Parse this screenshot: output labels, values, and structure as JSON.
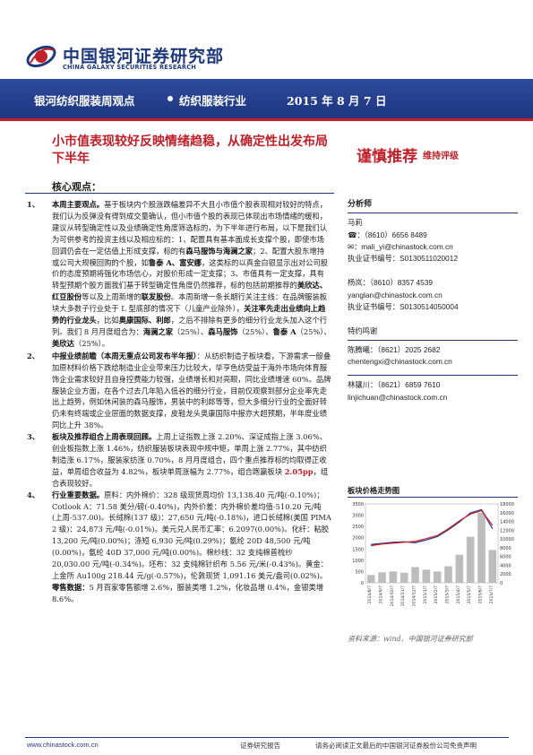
{
  "header": {
    "logo_cn": "中国银河证券研究部",
    "logo_en": "CHINA GALAXY SECURITIES RESEARCH",
    "banner_title": "银河纺织服装周观点",
    "banner_industry": "纺织服装行业",
    "banner_date": "2015 年 8 月 7 日"
  },
  "headline": "小市值表现较好反映情绪趋稳，从确定性出发布局下半年",
  "rating": {
    "label": "谨慎推荐",
    "sub": "维持评级"
  },
  "core_label": "核心观点：",
  "items": [
    {
      "num": "1、",
      "segments": [
        {
          "t": "本周主要观点。",
          "s": "b"
        },
        {
          "t": "基于板块内个股涨跌幅差异不大且小市值个股表现相对较好的特点，我们认为反弹没有得到成交量确认，但小市值个股的表现已体现出市场情绪的缓和，建议从转型确定性以及业绩确定性角度筛选标的，为下半年进行布局，以下是我们认为可供参考的投资主线以及相应标的：1、配置具有基本面成长支撑个股，即使市场回调仍会在一定估值上形成支撑，标的有"
        },
        {
          "t": "森马服饰与海澜之家",
          "s": "b"
        },
        {
          "t": "；2、配置大股东增持或公司大规模回购的个股，如"
        },
        {
          "t": "鲁泰 A、富安娜",
          "s": "b"
        },
        {
          "t": "，这类标的以真金白银显示出对公司股价的态度预期将强化市场信心，对股价形成一定支撑；3、市值具有一定支撑，具有转型预期个股方面我们基于转型确定性角度仍然推荐，标的包括前期推荐的"
        },
        {
          "t": "美欣达、红豆股份",
          "s": "b"
        },
        {
          "t": "等以及上周新增的"
        },
        {
          "t": "联发股份",
          "s": "b"
        },
        {
          "t": "。本周新增一条长期行关注主线：在品牌服装板块大多数子行业处于 L 型底部的情况下（儿童产业除外），"
        },
        {
          "t": "关注率先走出业绩向上趋势的行业龙头",
          "s": "b"
        },
        {
          "t": "，比如"
        },
        {
          "t": "奥康国际、利郎",
          "s": "b"
        },
        {
          "t": "，之后不排除有更多的细分行业龙头加入这个行列。我们 8 月月度组合为："
        },
        {
          "t": "海澜之家",
          "s": "b"
        },
        {
          "t": "（25%）、"
        },
        {
          "t": "森马服饰",
          "s": "b"
        },
        {
          "t": "（25%）、"
        },
        {
          "t": "鲁泰 A",
          "s": "b"
        },
        {
          "t": "（25%）、"
        },
        {
          "t": "美欣达",
          "s": "b"
        },
        {
          "t": "（25%）。"
        }
      ]
    },
    {
      "num": "2、",
      "segments": [
        {
          "t": "中报业绩前瞻（本周无重点公司发布半年报）",
          "s": "b"
        },
        {
          "t": "：从纺织制造子板块看，下游需求一般叠加原材料价格下跌给制造业企业带来压力比较大，毕亨色纺受益于海外市场向体育服饰企业需求较好且自身控费能力较强，业绩增长和对亮眼，同比业绩增速 60%。品牌服装企业方面，在各个过去几年陷入低谷的细分行业，目前仅观察到部分企业率先走出上趋势，例如休闲装的森马服饰，男装中的利郎等等，但大多细分行业的全面好转仍未有终端或企业层面的数据支撑，皮鞋龙头奥康国际中报亦大超预期，半年度业绩同比上升 38%。"
        }
      ]
    },
    {
      "num": "3、",
      "segments": [
        {
          "t": "板块及推荐组合上周表现回顾。",
          "s": "b"
        },
        {
          "t": "上周上证指数上涨 2.20%、深证成指上涨 3.06%、创业板指数上涨 1.46%，纺织服装板块表现中规中矩，单周上涨 2.77%，其中纺织制造涨 6.17%，服装家纺涨 0.70%，8 月月度组合，四个重点推荐标的均取得正收益，单周组合收益为 4.82%，板块单周涨幅为 2.77%，组合跑赢板块 "
        },
        {
          "t": "2.05pp",
          "s": "red"
        },
        {
          "t": "，组合表现较好。"
        }
      ]
    },
    {
      "num": "4、",
      "segments": [
        {
          "t": "行业重要数据。",
          "s": "b"
        },
        {
          "t": "原料：内外棉价：328 级现货周均价 13,138.40 元/吨(-0.10%)；Cotlook A：71.58 美分/磅(-0.40%)，内外价差：内外棉价差均值-510.20 元/吨(上周-537.00)。长绒棉(137 级)：27,650 元/吨(-0.18%)，进口长绒棉(美国 PIMA 2 级)：24,873 元/吨(-0.01%)。美元兑人民币汇率：6.2097(0.00%)。化纤：粘胶 13,200 元/吨(0.00%)；涤短 6,930 元/吨(0.29%)；氨纶 20D 48,500 元/吨(0.00%)，氨纶 40D 37,000 元/吨(0.00%)。棉纱线：32 支纯棉普梳纱 20,030.00 元/吨(-0.34%)。坯布：32 支纯棉针织布 5.56 元/米(-0.43%)。黄金：上金所 Au100g 218.44 元/g(-0.57%)，伦敦现货 1,091.16 美元/盎司(0.02%)。"
        },
        {
          "t": "零售数据：",
          "s": "b"
        },
        {
          "t": "5 月百家零售额增 2.6%，服装类增 1.2%，化妆品增 0.4%，金银类增 8.6%。"
        }
      ]
    }
  ],
  "sidebar": {
    "title": "分析师",
    "analysts": [
      {
        "name": "马莉",
        "phone": "☎：（8610）6656 8489",
        "email": "✉：mali_yi@chinastock.com.cn",
        "cert": "执业证书编号：S0130511020012"
      },
      {
        "name": "杨岚：（8610）8357 4539",
        "phone": "yanglan@chinastock.com.cn",
        "email": "执业证书编号：S0130514050004",
        "cert": ""
      }
    ],
    "contact_title": "特约鸣谢",
    "contacts": [
      {
        "name": "陈腾曦：（8621）2025 2682",
        "email": "chentengxi@chinastock.com.cn"
      },
      {
        "name": "林骧川：（8621）6859 7610",
        "email": "linjichuan@chinastock.com.cn"
      }
    ]
  },
  "chart": {
    "title": "板块价格走势图",
    "source": "资料来源：wind、中国银河证券研究部"
  },
  "chart_data": {
    "type": "line",
    "title": "板块价格走势图",
    "x": [
      "2014/8/7",
      "2014/9/7",
      "2014/10/7",
      "2014/11/7",
      "2014/12/7",
      "2015/1/7",
      "2015/2/7",
      "2015/3/7",
      "2015/4/7",
      "2015/5/7",
      "2015/6/7",
      "2015/7/7"
    ],
    "ylim_left": [
      0,
      3500
    ],
    "yticks_left": [
      0,
      500,
      1000,
      1500,
      2000,
      2500,
      3000,
      3500
    ],
    "ylim_right": [
      0,
      18000
    ],
    "yticks_right": [
      0,
      2000,
      4000,
      6000,
      8000,
      10000,
      12000,
      14000,
      16000,
      18000
    ],
    "series": [
      {
        "color": "#1f3a8a",
        "values": [
          1700,
          1750,
          1800,
          1820,
          1780,
          1900,
          2050,
          2350,
          2700,
          3100,
          3250,
          2400
        ]
      },
      {
        "color": "#d0202a",
        "values": [
          1650,
          1720,
          1760,
          1800,
          1840,
          1960,
          2100,
          2400,
          2750,
          3050,
          3200,
          2550
        ]
      }
    ],
    "bars_axis": "right",
    "bars": [
      1800,
      2400,
      2600,
      2300,
      3600,
      3000,
      2600,
      3800,
      6400,
      10500,
      16000,
      7500
    ]
  },
  "footer": {
    "url": "www.chinastock.com.cn",
    "center": "证券研究报告",
    "right": "请务必阅读正文最后的中国银河证券股份公司免责声明"
  }
}
